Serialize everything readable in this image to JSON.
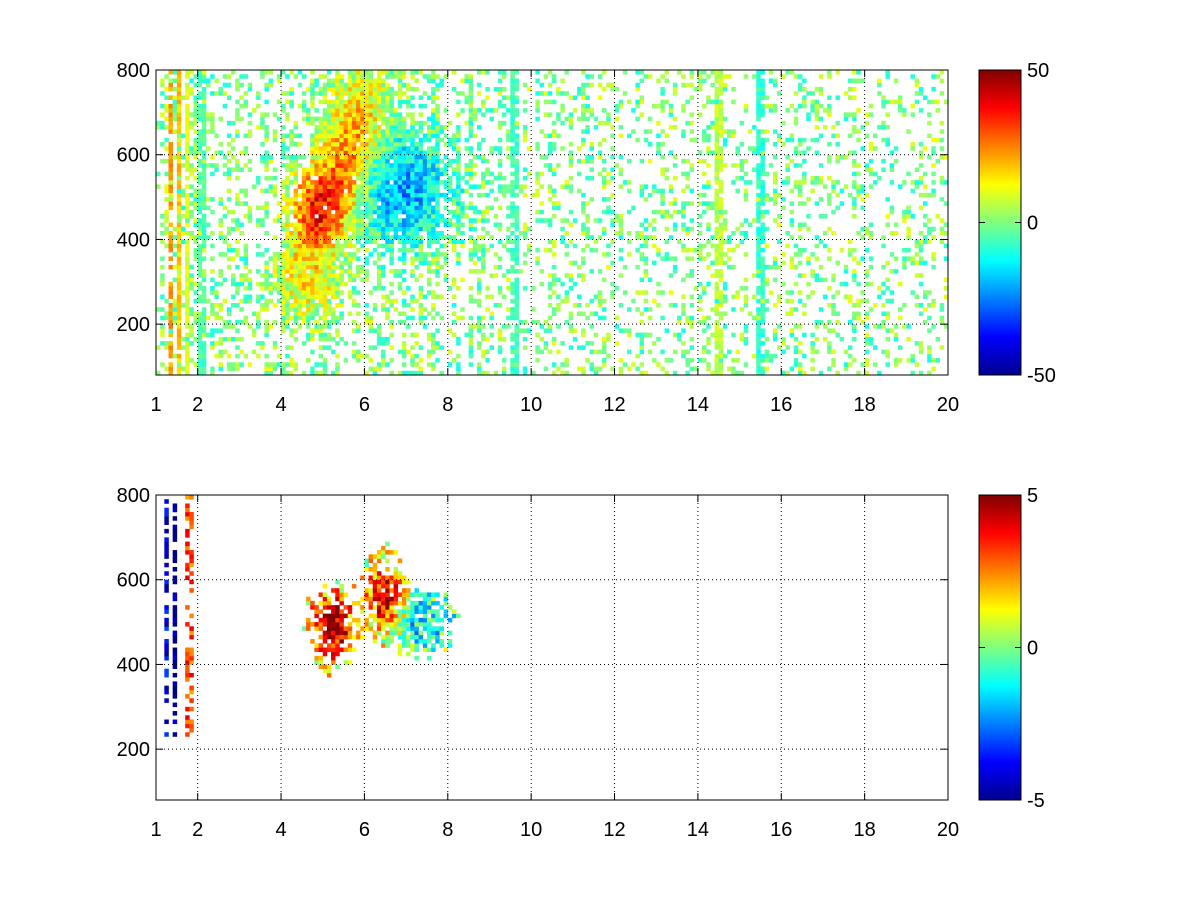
{
  "chart_data": [
    {
      "type": "heatmap",
      "title": "",
      "xlabel": "",
      "ylabel": "",
      "xlim": [
        1,
        20
      ],
      "ylim": [
        80,
        800
      ],
      "x_ticks": [
        1,
        2,
        4,
        6,
        8,
        10,
        12,
        14,
        16,
        18,
        20
      ],
      "x_tick_labels": [
        "1",
        "2",
        "4",
        "6",
        "8",
        "10",
        "12",
        "14",
        "16",
        "18",
        "20"
      ],
      "y_ticks": [
        200,
        400,
        600,
        800
      ],
      "y_tick_labels": [
        "200",
        "400",
        "600",
        "800"
      ],
      "grid": true,
      "colormap": "jet",
      "clim": [
        -50,
        50
      ],
      "colorbar_ticks": [
        -50,
        0,
        50
      ],
      "colorbar_tick_labels": [
        "-50",
        "0",
        "50"
      ],
      "nan_color": "#ffffff",
      "features": [
        {
          "x": 4.9,
          "y": 470,
          "sx": 0.45,
          "sy": 70,
          "amp": 38
        },
        {
          "x": 5.6,
          "y": 560,
          "sx": 0.4,
          "sy": 80,
          "amp": 22
        },
        {
          "x": 6.8,
          "y": 520,
          "sx": 0.9,
          "sy": 85,
          "amp": -22
        },
        {
          "x": 5.9,
          "y": 680,
          "sx": 0.5,
          "sy": 90,
          "amp": 15
        },
        {
          "x": 4.6,
          "y": 300,
          "sx": 0.5,
          "sy": 60,
          "amp": 12
        }
      ],
      "vertical_stripes": [
        {
          "x": 1.35,
          "value": 22
        },
        {
          "x": 1.55,
          "value": 18
        },
        {
          "x": 1.75,
          "value": 10
        },
        {
          "x": 2.1,
          "value": -5
        },
        {
          "x": 9.6,
          "value": -6
        },
        {
          "x": 14.5,
          "value": 6
        },
        {
          "x": 15.5,
          "value": -8
        }
      ]
    },
    {
      "type": "heatmap",
      "title": "",
      "xlabel": "",
      "ylabel": "",
      "xlim": [
        1,
        20
      ],
      "ylim": [
        80,
        800
      ],
      "x_ticks": [
        1,
        2,
        4,
        6,
        8,
        10,
        12,
        14,
        16,
        18,
        20
      ],
      "x_tick_labels": [
        "1",
        "2",
        "4",
        "6",
        "8",
        "10",
        "12",
        "14",
        "16",
        "18",
        "20"
      ],
      "y_ticks": [
        200,
        400,
        600,
        800
      ],
      "y_tick_labels": [
        "200",
        "400",
        "600",
        "800"
      ],
      "grid": true,
      "colormap": "jet",
      "clim": [
        -5,
        5
      ],
      "colorbar_ticks": [
        -5,
        0,
        5
      ],
      "colorbar_tick_labels": [
        "-5",
        "0",
        "5"
      ],
      "nan_color": "#ffffff",
      "features": [
        {
          "x": 5.2,
          "y": 490,
          "sx": 0.4,
          "sy": 65,
          "amp": 5
        },
        {
          "x": 6.5,
          "y": 560,
          "sx": 0.35,
          "sy": 70,
          "amp": 4
        },
        {
          "x": 7.3,
          "y": 500,
          "sx": 0.55,
          "sy": 50,
          "amp": -1.5
        }
      ],
      "vertical_stripes": [
        {
          "x": 1.25,
          "value": -4
        },
        {
          "x": 1.45,
          "value": -5
        },
        {
          "x": 1.8,
          "value": 3
        }
      ]
    }
  ]
}
